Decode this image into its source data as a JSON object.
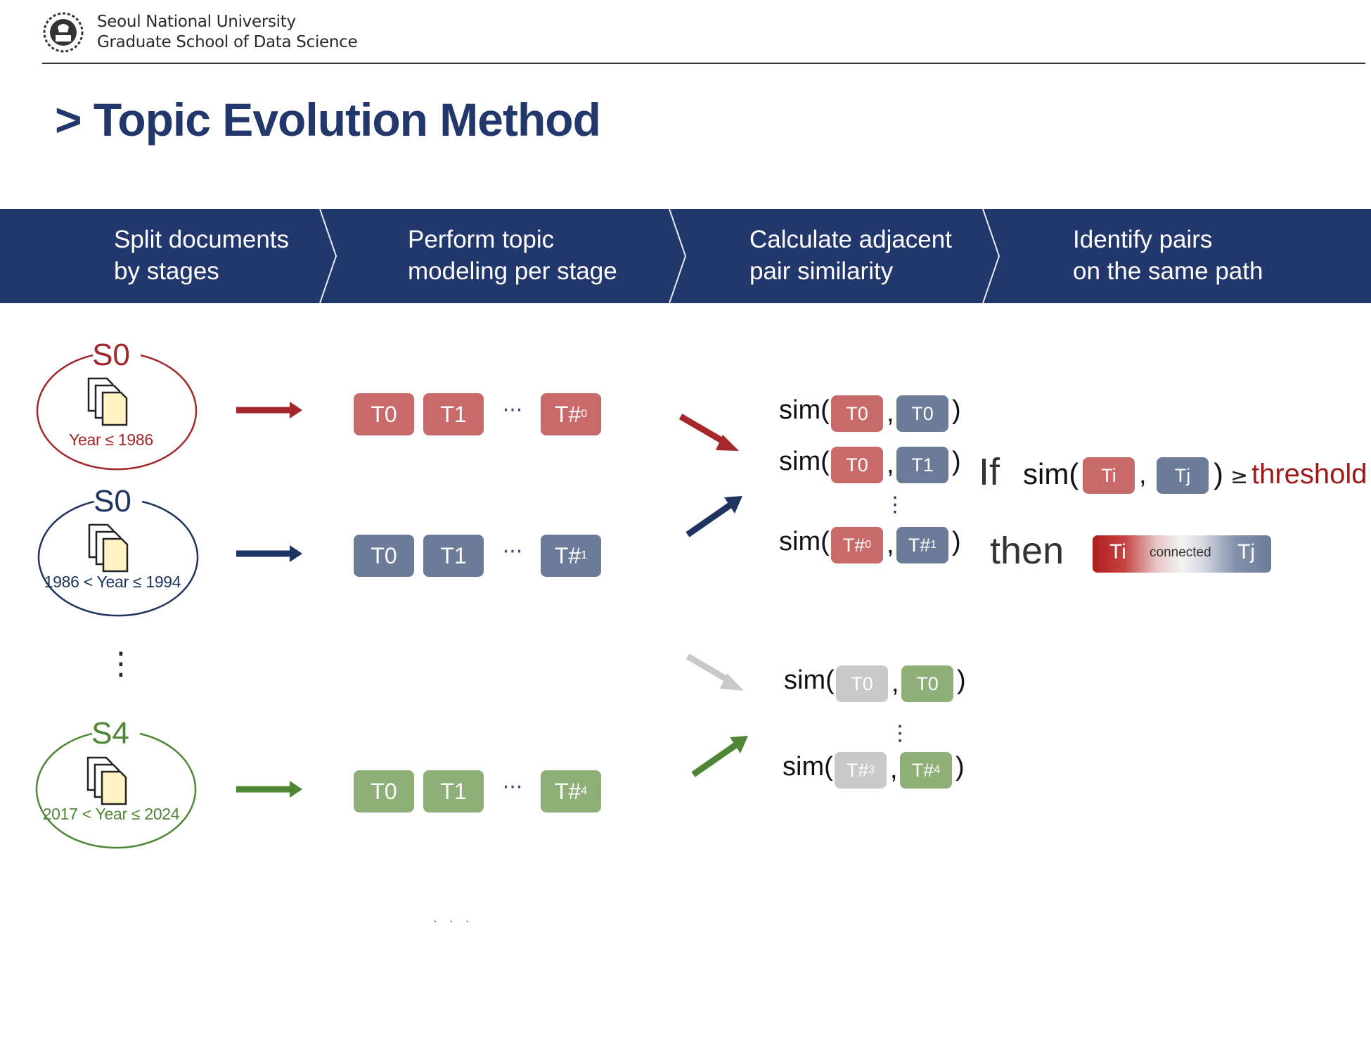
{
  "header": {
    "university": "Seoul National University",
    "school": "Graduate School of Data Science"
  },
  "title": "> Topic Evolution Method",
  "steps": [
    {
      "label": "Split documents\nby stages"
    },
    {
      "label": "Perform topic\nmodeling per stage"
    },
    {
      "label": "Calculate adjacent\npair similarity"
    },
    {
      "label": "Identify pairs\non the same path"
    }
  ],
  "stages": [
    {
      "name": "S0",
      "years": "Year ≤ 1986",
      "color": "#a3272b"
    },
    {
      "name": "S0",
      "years": "1986 < Year ≤ 1994",
      "color": "#1f3460"
    },
    {
      "name": "S4",
      "years": "2017 < Year ≤ 2024",
      "color": "#4e8636"
    }
  ],
  "topics": {
    "t0": "T0",
    "t1": "T1",
    "ellipsis": "···",
    "last_prefix": "T#",
    "last_subs": [
      "0",
      "1",
      "4"
    ]
  },
  "similarity": {
    "func": "sim(",
    "comma": ",",
    "close": ")",
    "rows_a": [
      {
        "left": "T0",
        "right": "T0"
      },
      {
        "left": "T0",
        "right": "T1"
      },
      {
        "left": "T#",
        "left_sub": "0",
        "right": "T#",
        "right_sub": "1"
      }
    ],
    "rows_b": [
      {
        "left": "T0",
        "right": "T0"
      },
      {
        "left": "T#",
        "left_sub": "3",
        "right": "T#",
        "right_sub": "4"
      }
    ],
    "vdots": "⋮"
  },
  "rule": {
    "if": "If",
    "func": "sim(",
    "ti": "Ti",
    "tj": "Tj",
    "comma": ",",
    "close": ")",
    "op": "≥",
    "threshold": "threshold",
    "then": "then",
    "connected": "connected"
  },
  "stage_vdots": "⋮",
  "footer_dots": "·   ·   ·",
  "colors": {
    "navy": "#1f3460",
    "red": "#c96a6a",
    "blue": "#6c7b98",
    "green": "#8faf78",
    "grey": "#c9c9c9"
  }
}
